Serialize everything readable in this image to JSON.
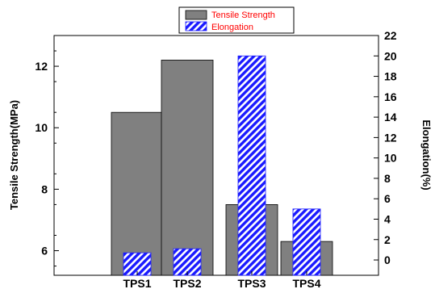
{
  "chart_data": {
    "type": "bar",
    "categories": [
      "TPS1",
      "TPS2",
      "TPS3",
      "TPS4"
    ],
    "series": [
      {
        "name": "Tensile Strength",
        "axis": "left",
        "color": "#808080",
        "pattern": "solid",
        "values": [
          10.5,
          12.2,
          7.5,
          6.3
        ]
      },
      {
        "name": "Elongation",
        "axis": "right",
        "color": "#1a1aff",
        "pattern": "diagonal-hatch",
        "values": [
          0.7,
          1.1,
          20.0,
          5.0
        ]
      }
    ],
    "ylabel": "Tensile Strength(MPa)",
    "y2label": "Elongation(%)",
    "ylim": [
      5.2,
      13.0
    ],
    "y2lim": [
      -1.5,
      22.0
    ],
    "yticks": [
      6,
      8,
      10,
      12
    ],
    "y2ticks": [
      0,
      2,
      4,
      6,
      8,
      10,
      12,
      14,
      16,
      18,
      20,
      22
    ],
    "legend": {
      "placement": "top",
      "text_color": "#ff0000",
      "entries": [
        "Tensile Strength",
        "Elongation"
      ]
    },
    "grid": false
  }
}
